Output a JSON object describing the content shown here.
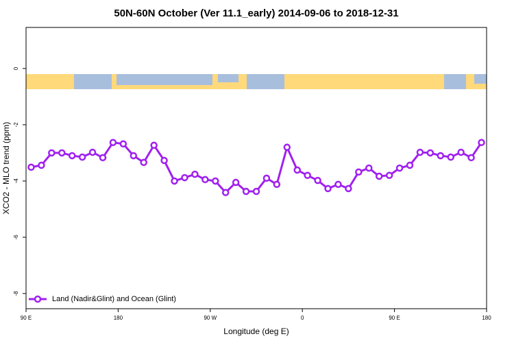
{
  "chart_data": {
    "type": "line",
    "title": "50N-60N October (Ver 11.1_early)   2014-09-06 to 2018-12-31",
    "x_label": "Longitude (deg E)",
    "y_label": "XCO2 - MLO trend (ppm)",
    "xlim": [
      90,
      540
    ],
    "ylim": [
      -8.54,
      1.46
    ],
    "xticks": [
      {
        "value": 90,
        "label": "90 E"
      },
      180,
      {
        "value": 270,
        "label": "90 W"
      },
      {
        "value": 360,
        "label": "0"
      },
      {
        "value": 450,
        "label": "90 E"
      },
      {
        "value": 540,
        "label": "180"
      }
    ],
    "yticks": [
      0,
      -2,
      -4,
      -6,
      -8
    ],
    "legend": "lower left",
    "x": [
      95,
      105,
      115,
      125,
      135,
      145,
      155,
      165,
      175,
      185,
      195,
      205,
      215,
      225,
      235,
      245,
      255,
      265,
      275,
      285,
      295,
      305,
      315,
      325,
      335,
      345,
      355,
      365,
      375,
      385,
      395,
      405,
      415,
      425,
      435,
      445,
      455,
      465,
      475,
      485,
      495,
      505,
      515,
      525,
      535
    ],
    "series": [
      {
        "name": "Land (Nadir&Glint) and Ocean (Glint)",
        "color": "#a020f0",
        "values": [
          -3.51,
          -3.44,
          -3.0,
          -3.0,
          -3.1,
          -3.15,
          -2.98,
          -3.17,
          -2.63,
          -2.68,
          -3.1,
          -3.34,
          -2.73,
          -3.27,
          -4.0,
          -3.88,
          -3.76,
          -3.95,
          -4.0,
          -4.41,
          -4.05,
          -4.37,
          -4.37,
          -3.9,
          -4.12,
          -2.8,
          -3.61,
          -3.8,
          -3.98,
          -4.27,
          -4.12,
          -4.27,
          -3.68,
          -3.54,
          -3.83,
          -3.8,
          -3.54,
          -3.44,
          -2.98,
          -3.0,
          -3.1,
          -3.15,
          -2.98,
          -3.17,
          -2.63
        ]
      }
    ]
  }
}
